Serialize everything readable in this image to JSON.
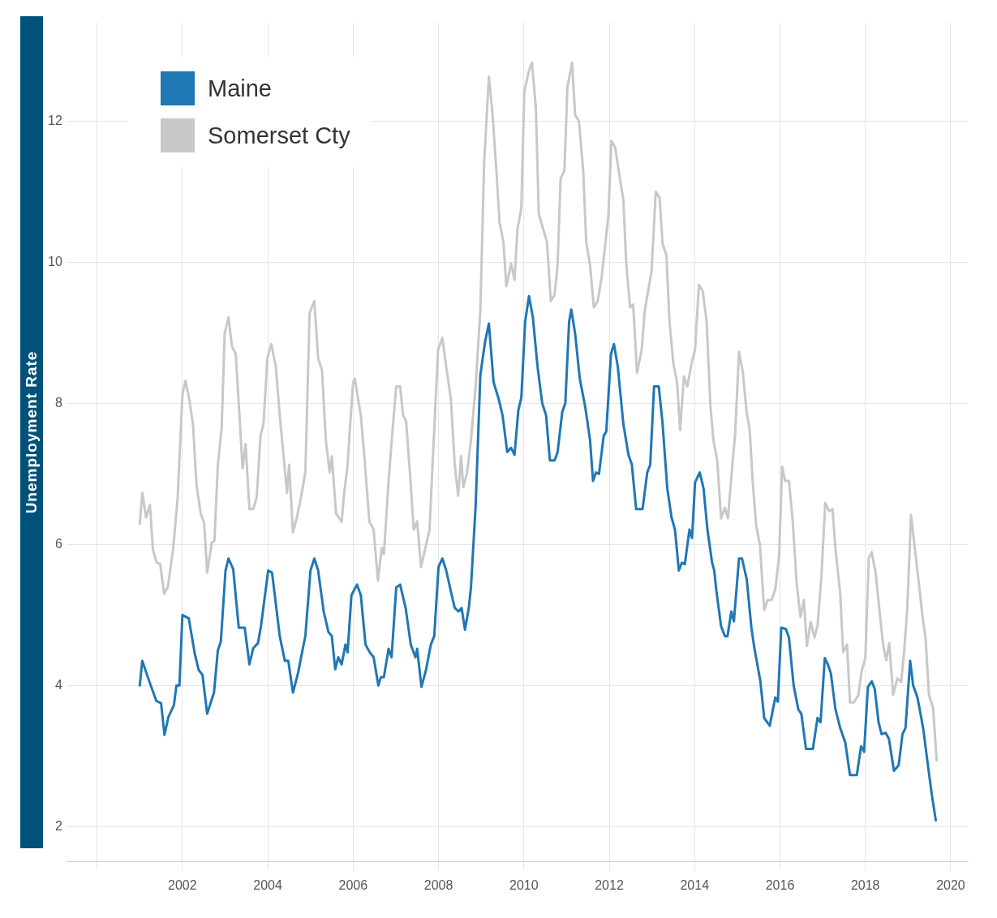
{
  "chart_data": {
    "type": "line",
    "ylabel": "Unemployment Rate",
    "legend": "top left",
    "grid": true,
    "xlim": [
      1999.3,
      2020.4
    ],
    "xticks": [
      {
        "value": 2000,
        "label": null
      },
      2002,
      2004,
      2006,
      2008,
      2010,
      2012,
      2014,
      2016,
      2018,
      2020
    ],
    "ylim": [
      1.5,
      13.4
    ],
    "yticks": [
      2,
      4,
      6,
      8,
      10,
      12
    ],
    "series": [
      {
        "name": "Somerset Cty",
        "color": "#c8c8c8",
        "x": [
          2001.0,
          2001.06,
          2001.15,
          2001.24,
          2001.31,
          2001.4,
          2001.48,
          2001.57,
          2001.66,
          2001.78,
          2001.89,
          2002.0,
          2002.07,
          2002.16,
          2002.25,
          2002.33,
          2002.43,
          2002.51,
          2002.58,
          2002.69,
          2002.75,
          2002.83,
          2002.92,
          2002.99,
          2003.08,
          2003.16,
          2003.25,
          2003.41,
          2003.48,
          2003.57,
          2003.66,
          2003.74,
          2003.83,
          2003.9,
          2003.99,
          2004.08,
          2004.19,
          2004.28,
          2004.39,
          2004.45,
          2004.5,
          2004.59,
          2004.68,
          2004.78,
          2004.88,
          2004.98,
          2005.09,
          2005.18,
          2005.27,
          2005.36,
          2005.45,
          2005.5,
          2005.6,
          2005.73,
          2005.78,
          2005.87,
          2005.93,
          2006.0,
          2006.04,
          2006.1,
          2006.18,
          2006.27,
          2006.38,
          2006.48,
          2006.58,
          2006.67,
          2006.72,
          2006.83,
          2006.92,
          2007.01,
          2007.1,
          2007.17,
          2007.24,
          2007.33,
          2007.42,
          2007.5,
          2007.59,
          2007.7,
          2007.79,
          2007.86,
          2007.99,
          2008.09,
          2008.18,
          2008.29,
          2008.38,
          2008.46,
          2008.53,
          2008.58,
          2008.67,
          2008.76,
          2008.87,
          2008.98,
          2009.07,
          2009.18,
          2009.27,
          2009.36,
          2009.43,
          2009.52,
          2009.59,
          2009.7,
          2009.78,
          2009.85,
          2009.94,
          2010.01,
          2010.12,
          2010.19,
          2010.28,
          2010.35,
          2010.54,
          2010.63,
          2010.72,
          2010.79,
          2010.86,
          2010.95,
          2011.02,
          2011.13,
          2011.2,
          2011.29,
          2011.39,
          2011.46,
          2011.55,
          2011.64,
          2011.73,
          2011.82,
          2011.98,
          2012.05,
          2012.14,
          2012.22,
          2012.33,
          2012.4,
          2012.49,
          2012.56,
          2012.65,
          2012.76,
          2012.83,
          2012.99,
          2013.09,
          2013.18,
          2013.25,
          2013.34,
          2013.41,
          2013.5,
          2013.59,
          2013.66,
          2013.75,
          2013.83,
          2013.93,
          2014.01,
          2014.1,
          2014.19,
          2014.28,
          2014.37,
          2014.44,
          2014.53,
          2014.62,
          2014.71,
          2014.78,
          2014.88,
          2014.95,
          2015.04,
          2015.13,
          2015.22,
          2015.29,
          2015.36,
          2015.44,
          2015.53,
          2015.63,
          2015.71,
          2015.8,
          2015.89,
          2015.98,
          2016.05,
          2016.12,
          2016.21,
          2016.3,
          2016.39,
          2016.48,
          2016.56,
          2016.63,
          2016.72,
          2016.81,
          2016.88,
          2016.97,
          2017.06,
          2017.15,
          2017.23,
          2017.3,
          2017.41,
          2017.48,
          2017.57,
          2017.64,
          2017.73,
          2017.84,
          2017.91,
          2018.0,
          2018.08,
          2018.15,
          2018.24,
          2018.33,
          2018.42,
          2018.49,
          2018.56,
          2018.65,
          2018.75,
          2018.84,
          2018.91,
          2018.98,
          2019.07,
          2019.16,
          2019.27,
          2019.34,
          2019.41,
          2019.49,
          2019.59,
          2019.67
        ],
        "values": [
          6.29,
          6.73,
          6.38,
          6.56,
          5.92,
          5.74,
          5.72,
          5.3,
          5.4,
          5.92,
          6.67,
          8.12,
          8.32,
          8.06,
          7.69,
          6.84,
          6.44,
          6.3,
          5.6,
          6.03,
          6.05,
          7.13,
          7.65,
          8.99,
          9.22,
          8.81,
          8.7,
          7.08,
          7.42,
          6.5,
          6.5,
          6.67,
          7.54,
          7.71,
          8.64,
          8.84,
          8.52,
          7.83,
          7.13,
          6.73,
          7.13,
          6.17,
          6.38,
          6.67,
          7.02,
          9.28,
          9.45,
          8.64,
          8.47,
          7.48,
          7.02,
          7.25,
          6.44,
          6.32,
          6.67,
          7.13,
          7.7,
          8.3,
          8.35,
          8.12,
          7.83,
          7.19,
          6.32,
          6.21,
          5.49,
          5.95,
          5.86,
          6.9,
          7.6,
          8.24,
          8.24,
          7.83,
          7.75,
          7.02,
          6.21,
          6.33,
          5.68,
          5.97,
          6.21,
          7.13,
          8.76,
          8.93,
          8.52,
          8.06,
          7.13,
          6.69,
          7.25,
          6.81,
          7.02,
          7.48,
          8.24,
          9.33,
          11.42,
          12.63,
          12.07,
          11.26,
          10.56,
          10.29,
          9.66,
          9.98,
          9.75,
          10.47,
          10.77,
          12.42,
          12.72,
          12.83,
          12.19,
          10.68,
          10.29,
          9.45,
          9.54,
          9.96,
          11.19,
          11.3,
          12.48,
          12.83,
          12.09,
          12.0,
          11.3,
          10.29,
          9.96,
          9.36,
          9.45,
          9.78,
          10.66,
          11.72,
          11.63,
          11.3,
          10.89,
          9.96,
          9.36,
          9.4,
          8.43,
          8.76,
          9.31,
          9.87,
          11.0,
          10.91,
          10.26,
          10.1,
          9.17,
          8.57,
          8.29,
          7.62,
          8.38,
          8.24,
          8.57,
          8.76,
          9.68,
          9.59,
          9.17,
          7.97,
          7.48,
          7.19,
          6.37,
          6.52,
          6.37,
          7.1,
          7.57,
          8.73,
          8.44,
          7.86,
          7.63,
          6.9,
          6.28,
          5.99,
          5.07,
          5.21,
          5.21,
          5.36,
          5.84,
          7.1,
          6.9,
          6.9,
          6.32,
          5.45,
          4.97,
          5.21,
          4.56,
          4.9,
          4.68,
          4.85,
          5.54,
          6.59,
          6.47,
          6.5,
          5.94,
          5.31,
          4.47,
          4.58,
          3.76,
          3.76,
          3.87,
          4.2,
          4.39,
          5.81,
          5.89,
          5.6,
          5.07,
          4.56,
          4.36,
          4.6,
          3.87,
          4.1,
          4.05,
          4.49,
          5.07,
          6.42,
          5.94,
          5.36,
          4.97,
          4.68,
          3.87,
          3.67,
          2.94
        ]
      },
      {
        "name": "Maine",
        "color": "#1f77b4",
        "x": [
          2001.0,
          2001.06,
          2001.2,
          2001.39,
          2001.5,
          2001.58,
          2001.67,
          2001.8,
          2001.86,
          2001.93,
          2002.0,
          2002.15,
          2002.29,
          2002.38,
          2002.47,
          2002.58,
          2002.74,
          2002.83,
          2002.9,
          2003.01,
          2003.08,
          2003.19,
          2003.32,
          2003.46,
          2003.57,
          2003.66,
          2003.77,
          2003.84,
          2004.01,
          2004.1,
          2004.28,
          2004.4,
          2004.48,
          2004.59,
          2004.71,
          2004.82,
          2004.88,
          2005.0,
          2005.09,
          2005.18,
          2005.31,
          2005.42,
          2005.5,
          2005.58,
          2005.65,
          2005.73,
          2005.82,
          2005.87,
          2005.96,
          2006.09,
          2006.18,
          2006.29,
          2006.39,
          2006.48,
          2006.59,
          2006.65,
          2006.72,
          2006.83,
          2006.9,
          2007.01,
          2007.1,
          2007.23,
          2007.35,
          2007.46,
          2007.5,
          2007.6,
          2007.71,
          2007.82,
          2007.9,
          2008.0,
          2008.09,
          2008.18,
          2008.31,
          2008.38,
          2008.47,
          2008.54,
          2008.62,
          2008.71,
          2008.76,
          2008.87,
          2008.98,
          2009.09,
          2009.18,
          2009.29,
          2009.41,
          2009.5,
          2009.61,
          2009.7,
          2009.78,
          2009.87,
          2009.94,
          2010.03,
          2010.12,
          2010.21,
          2010.32,
          2010.43,
          2010.52,
          2010.61,
          2010.72,
          2010.79,
          2010.9,
          2010.97,
          2011.06,
          2011.11,
          2011.2,
          2011.31,
          2011.44,
          2011.55,
          2011.62,
          2011.69,
          2011.76,
          2011.87,
          2011.93,
          2012.04,
          2012.11,
          2012.2,
          2012.33,
          2012.45,
          2012.53,
          2012.63,
          2012.78,
          2012.89,
          2012.96,
          2013.05,
          2013.16,
          2013.25,
          2013.36,
          2013.46,
          2013.54,
          2013.63,
          2013.7,
          2013.77,
          2013.88,
          2013.94,
          2014.01,
          2014.12,
          2014.21,
          2014.3,
          2014.41,
          2014.46,
          2014.51,
          2014.62,
          2014.71,
          2014.77,
          2014.86,
          2014.92,
          2015.04,
          2015.11,
          2015.22,
          2015.33,
          2015.4,
          2015.49,
          2015.54,
          2015.63,
          2015.76,
          2015.89,
          2015.95,
          2016.03,
          2016.14,
          2016.21,
          2016.32,
          2016.43,
          2016.5,
          2016.61,
          2016.77,
          2016.88,
          2016.95,
          2017.05,
          2017.12,
          2017.19,
          2017.3,
          2017.41,
          2017.53,
          2017.64,
          2017.8,
          2017.9,
          2017.97,
          2018.06,
          2018.15,
          2018.22,
          2018.31,
          2018.38,
          2018.47,
          2018.55,
          2018.67,
          2018.78,
          2018.87,
          2018.94,
          2019.05,
          2019.12,
          2019.22,
          2019.31,
          2019.36,
          2019.47,
          2019.56,
          2019.65
        ],
        "values": [
          4.0,
          4.35,
          4.1,
          3.78,
          3.75,
          3.3,
          3.55,
          3.72,
          4.0,
          4.0,
          5.0,
          4.95,
          4.45,
          4.22,
          4.15,
          3.6,
          3.9,
          4.5,
          4.62,
          5.63,
          5.8,
          5.65,
          4.82,
          4.82,
          4.3,
          4.53,
          4.6,
          4.84,
          5.63,
          5.6,
          4.7,
          4.35,
          4.35,
          3.9,
          4.18,
          4.52,
          4.7,
          5.63,
          5.8,
          5.63,
          5.05,
          4.76,
          4.7,
          4.23,
          4.4,
          4.3,
          4.58,
          4.47,
          5.28,
          5.43,
          5.28,
          4.58,
          4.47,
          4.4,
          4.0,
          4.12,
          4.12,
          4.52,
          4.4,
          5.39,
          5.43,
          5.1,
          4.58,
          4.4,
          4.52,
          3.98,
          4.23,
          4.58,
          4.7,
          5.68,
          5.8,
          5.63,
          5.28,
          5.1,
          5.05,
          5.1,
          4.79,
          5.1,
          5.39,
          6.55,
          8.4,
          8.87,
          9.13,
          8.3,
          8.06,
          7.83,
          7.31,
          7.37,
          7.27,
          7.9,
          8.08,
          9.16,
          9.52,
          9.22,
          8.52,
          8.0,
          7.83,
          7.19,
          7.19,
          7.31,
          7.88,
          8.0,
          9.16,
          9.33,
          8.99,
          8.35,
          7.94,
          7.48,
          6.9,
          7.02,
          7.0,
          7.54,
          7.6,
          8.7,
          8.84,
          8.52,
          7.71,
          7.27,
          7.13,
          6.5,
          6.5,
          7.02,
          7.13,
          8.24,
          8.24,
          7.71,
          6.79,
          6.38,
          6.21,
          5.63,
          5.74,
          5.72,
          6.21,
          6.09,
          6.88,
          7.02,
          6.79,
          6.21,
          5.74,
          5.63,
          5.34,
          4.84,
          4.7,
          4.7,
          5.05,
          4.91,
          5.8,
          5.8,
          5.51,
          4.82,
          4.53,
          4.23,
          4.06,
          3.54,
          3.43,
          3.83,
          3.77,
          4.82,
          4.8,
          4.68,
          4.0,
          3.66,
          3.6,
          3.1,
          3.1,
          3.54,
          3.48,
          4.39,
          4.3,
          4.18,
          3.66,
          3.4,
          3.19,
          2.73,
          2.73,
          3.14,
          3.06,
          3.98,
          4.06,
          3.95,
          3.48,
          3.31,
          3.33,
          3.25,
          2.79,
          2.87,
          3.31,
          3.4,
          4.35,
          4.0,
          3.83,
          3.54,
          3.37,
          2.85,
          2.44,
          2.09
        ]
      }
    ]
  }
}
